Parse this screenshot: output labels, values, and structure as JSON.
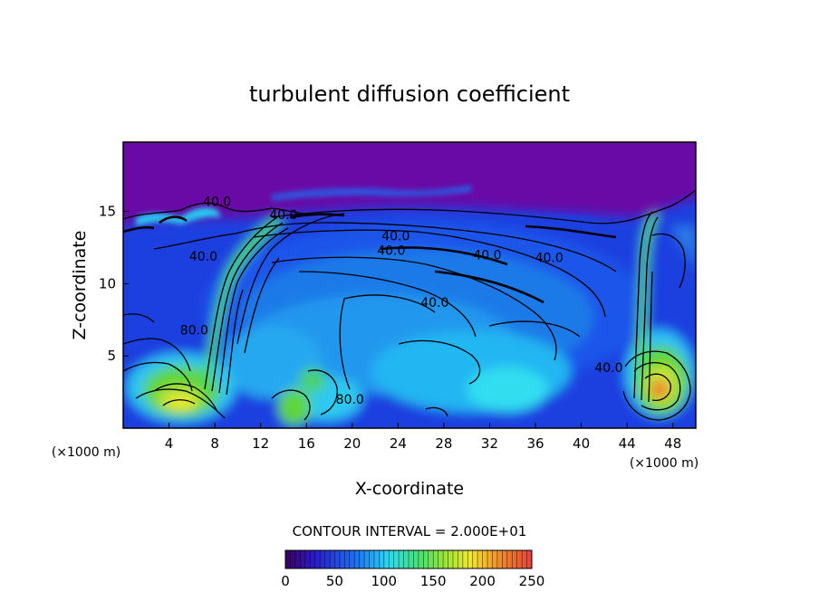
{
  "chart_data": {
    "type": "heatmap",
    "title": "turbulent diffusion coefficient",
    "xlabel": "X-coordinate",
    "ylabel": "Z-coordinate",
    "x_unit_left": "(×1000 m)",
    "x_unit_right": "(×1000 m)",
    "xlim": [
      0,
      50
    ],
    "ylim": [
      0,
      19.8
    ],
    "xticks": [
      "4",
      "8",
      "12",
      "16",
      "20",
      "24",
      "28",
      "32",
      "36",
      "40",
      "44",
      "48"
    ],
    "xtick_values": [
      4,
      8,
      12,
      16,
      20,
      24,
      28,
      32,
      36,
      40,
      44,
      48
    ],
    "yticks": [
      "5",
      "10",
      "15"
    ],
    "ytick_values": [
      5,
      10,
      15
    ],
    "contour_interval_text": "CONTOUR INTERVAL = 2.000E+01",
    "contour_interval": 20,
    "contour_labels": [
      {
        "text": "40.0",
        "x": 8.2,
        "y": 15.7
      },
      {
        "text": "40.0",
        "x": 14.0,
        "y": 14.8
      },
      {
        "text": "40.0",
        "x": 23.8,
        "y": 13.3
      },
      {
        "text": "40.0",
        "x": 23.4,
        "y": 12.3
      },
      {
        "text": "40.0",
        "x": 7.0,
        "y": 11.9
      },
      {
        "text": "40.0",
        "x": 31.8,
        "y": 12.0
      },
      {
        "text": "40.0",
        "x": 37.2,
        "y": 11.8
      },
      {
        "text": "40.0",
        "x": 27.2,
        "y": 8.7
      },
      {
        "text": "80.0",
        "x": 6.2,
        "y": 6.8
      },
      {
        "text": "80.0",
        "x": 19.8,
        "y": 2.0
      },
      {
        "text": "40.0",
        "x": 42.4,
        "y": 4.2
      }
    ],
    "colorbar": {
      "min": 0,
      "max": 250,
      "tick_labels": [
        "0",
        "50",
        "100",
        "150",
        "200",
        "250"
      ],
      "tick_values": [
        0,
        50,
        100,
        150,
        200,
        250
      ]
    },
    "colors": {
      "background_low": "#6a0aa6",
      "mid_blue": "#1d3fe0",
      "cyan": "#2fc0f5",
      "green": "#5ed63a",
      "yellow": "#f2ea2c",
      "orange": "#f07a2a",
      "high_red": "#d8382a"
    }
  }
}
